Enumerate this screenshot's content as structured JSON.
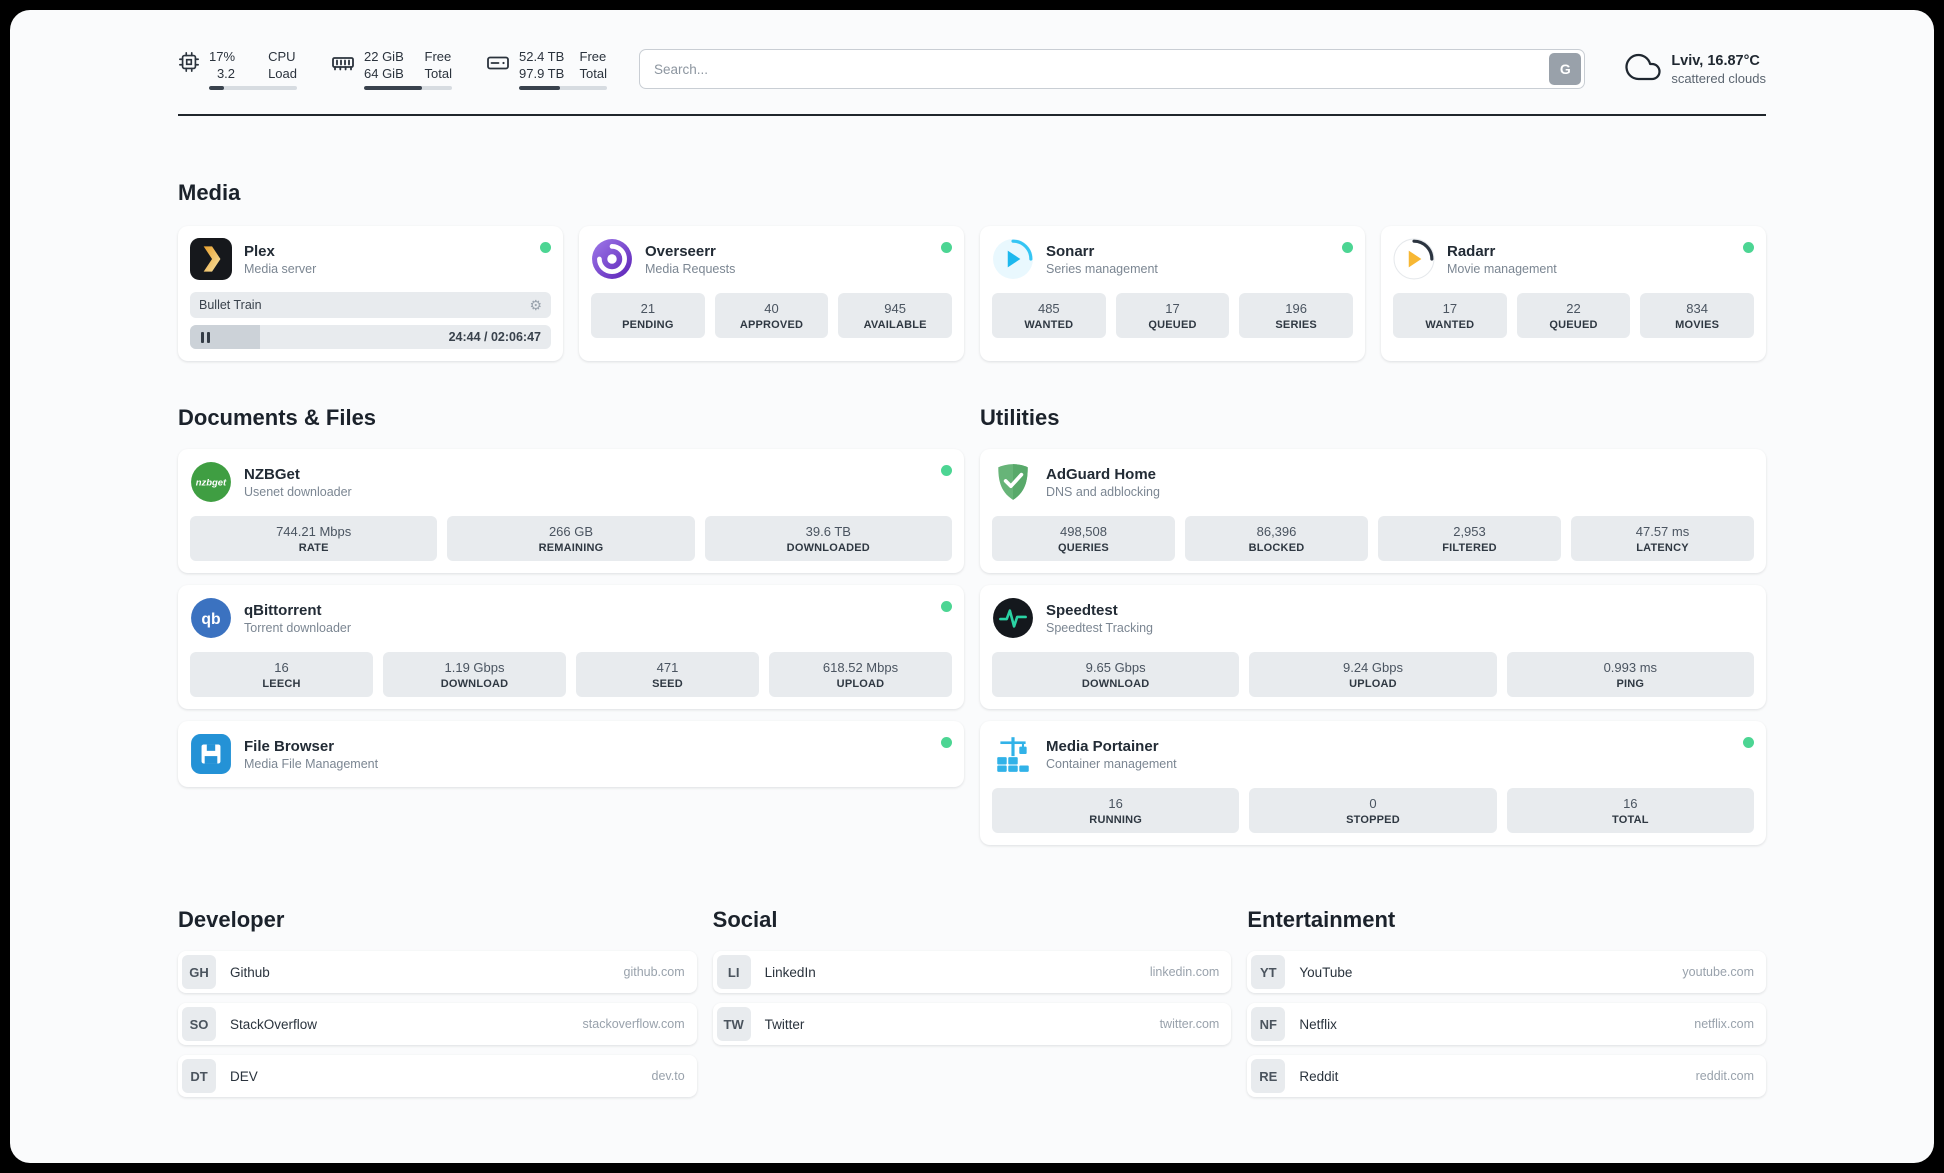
{
  "header": {
    "cpu": {
      "percent": "17%",
      "load": "3.2",
      "label_top": "CPU",
      "label_bottom": "Load",
      "bar": 17
    },
    "memory": {
      "free": "22 GiB",
      "total": "64 GiB",
      "label_top": "Free",
      "label_bottom": "Total",
      "bar": 66
    },
    "disk": {
      "free": "52.4 TB",
      "total": "97.9 TB",
      "label_top": "Free",
      "label_bottom": "Total",
      "bar": 47
    },
    "search": {
      "placeholder": "Search...",
      "provider": "G"
    },
    "weather": {
      "location": "Lviv, 16.87°C",
      "condition": "scattered clouds"
    }
  },
  "icons": {
    "gear": "⚙"
  },
  "colors": {
    "status_online": "#4cd593",
    "accent_plex": "#e8a02c",
    "accent_sonarr": "#1db8ee",
    "accent_radarr": "#f7b733",
    "tile_bg": "#e8ebee"
  },
  "media": {
    "title": "Media",
    "plex": {
      "name": "Plex",
      "subtitle": "Media server",
      "now_playing": "Bullet Train",
      "time": "24:44 / 02:06:47",
      "progress": 19.5
    },
    "overseerr": {
      "name": "Overseerr",
      "subtitle": "Media Requests",
      "stats": [
        {
          "value": "21",
          "label": "PENDING"
        },
        {
          "value": "40",
          "label": "APPROVED"
        },
        {
          "value": "945",
          "label": "AVAILABLE"
        }
      ]
    },
    "sonarr": {
      "name": "Sonarr",
      "subtitle": "Series management",
      "stats": [
        {
          "value": "485",
          "label": "WANTED"
        },
        {
          "value": "17",
          "label": "QUEUED"
        },
        {
          "value": "196",
          "label": "SERIES"
        }
      ]
    },
    "radarr": {
      "name": "Radarr",
      "subtitle": "Movie management",
      "stats": [
        {
          "value": "17",
          "label": "WANTED"
        },
        {
          "value": "22",
          "label": "QUEUED"
        },
        {
          "value": "834",
          "label": "MOVIES"
        }
      ]
    }
  },
  "documents": {
    "title": "Documents & Files",
    "nzbget": {
      "name": "NZBGet",
      "subtitle": "Usenet downloader",
      "stats": [
        {
          "value": "744.21 Mbps",
          "label": "RATE"
        },
        {
          "value": "266 GB",
          "label": "REMAINING"
        },
        {
          "value": "39.6 TB",
          "label": "DOWNLOADED"
        }
      ]
    },
    "qbittorrent": {
      "name": "qBittorrent",
      "subtitle": "Torrent downloader",
      "stats": [
        {
          "value": "16",
          "label": "LEECH"
        },
        {
          "value": "1.19 Gbps",
          "label": "DOWNLOAD"
        },
        {
          "value": "471",
          "label": "SEED"
        },
        {
          "value": "618.52 Mbps",
          "label": "UPLOAD"
        }
      ]
    },
    "filebrowser": {
      "name": "File Browser",
      "subtitle": "Media File Management"
    }
  },
  "utilities": {
    "title": "Utilities",
    "adguard": {
      "name": "AdGuard Home",
      "subtitle": "DNS and adblocking",
      "stats": [
        {
          "value": "498,508",
          "label": "QUERIES"
        },
        {
          "value": "86,396",
          "label": "BLOCKED"
        },
        {
          "value": "2,953",
          "label": "FILTERED"
        },
        {
          "value": "47.57 ms",
          "label": "LATENCY"
        }
      ]
    },
    "speedtest": {
      "name": "Speedtest",
      "subtitle": "Speedtest Tracking",
      "stats": [
        {
          "value": "9.65 Gbps",
          "label": "DOWNLOAD"
        },
        {
          "value": "9.24 Gbps",
          "label": "UPLOAD"
        },
        {
          "value": "0.993 ms",
          "label": "PING"
        }
      ]
    },
    "portainer": {
      "name": "Media Portainer",
      "subtitle": "Container management",
      "stats": [
        {
          "value": "16",
          "label": "RUNNING"
        },
        {
          "value": "0",
          "label": "STOPPED"
        },
        {
          "value": "16",
          "label": "TOTAL"
        }
      ]
    }
  },
  "bookmarks": [
    {
      "title": "Developer",
      "links": [
        {
          "abbr": "GH",
          "name": "Github",
          "domain": "github.com"
        },
        {
          "abbr": "SO",
          "name": "StackOverflow",
          "domain": "stackoverflow.com"
        },
        {
          "abbr": "DT",
          "name": "DEV",
          "domain": "dev.to"
        }
      ]
    },
    {
      "title": "Social",
      "links": [
        {
          "abbr": "LI",
          "name": "LinkedIn",
          "domain": "linkedin.com"
        },
        {
          "abbr": "TW",
          "name": "Twitter",
          "domain": "twitter.com"
        }
      ]
    },
    {
      "title": "Entertainment",
      "links": [
        {
          "abbr": "YT",
          "name": "YouTube",
          "domain": "youtube.com"
        },
        {
          "abbr": "NF",
          "name": "Netflix",
          "domain": "netflix.com"
        },
        {
          "abbr": "RE",
          "name": "Reddit",
          "domain": "reddit.com"
        }
      ]
    }
  ]
}
